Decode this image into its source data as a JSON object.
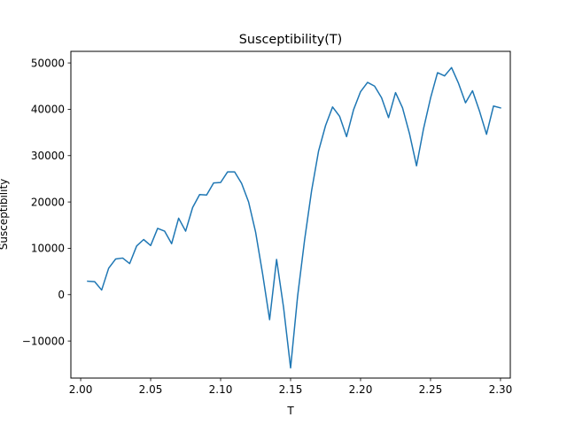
{
  "chart_data": {
    "type": "line",
    "title": "Susceptibility(T)",
    "xlabel": "T",
    "ylabel": "Susceptibility",
    "xlim": [
      1.993,
      2.307
    ],
    "ylim": [
      -18000,
      52500
    ],
    "xticks": [
      2.0,
      2.05,
      2.1,
      2.15,
      2.2,
      2.25,
      2.3
    ],
    "xtick_labels": [
      "2.00",
      "2.05",
      "2.10",
      "2.15",
      "2.20",
      "2.25",
      "2.30"
    ],
    "yticks": [
      -10000,
      0,
      10000,
      20000,
      30000,
      40000,
      50000
    ],
    "ytick_labels": [
      "−10000",
      "0",
      "10000",
      "20000",
      "30000",
      "40000",
      "50000"
    ],
    "grid": false,
    "line_color": "#1f77b4",
    "series": [
      {
        "x": [
          2.005,
          2.01,
          2.015,
          2.02,
          2.025,
          2.03,
          2.035,
          2.04,
          2.045,
          2.05,
          2.055,
          2.06,
          2.065,
          2.07,
          2.075,
          2.08,
          2.085,
          2.09,
          2.095,
          2.1,
          2.105,
          2.11,
          2.115,
          2.12,
          2.125,
          2.13,
          2.135,
          2.14,
          2.145,
          2.15,
          2.155,
          2.16,
          2.165,
          2.17,
          2.175,
          2.18,
          2.185,
          2.19,
          2.195,
          2.2,
          2.205,
          2.21,
          2.215,
          2.22,
          2.225,
          2.23,
          2.235,
          2.24,
          2.245,
          2.25,
          2.255,
          2.26,
          2.265,
          2.27,
          2.275,
          2.28,
          2.285,
          2.29,
          2.295,
          2.3
        ],
        "values": [
          2900,
          2800,
          1000,
          5700,
          7700,
          7900,
          6700,
          10500,
          11900,
          10600,
          14300,
          13700,
          11000,
          16500,
          13700,
          18800,
          21600,
          21500,
          24100,
          24200,
          26500,
          26500,
          24000,
          20000,
          13500,
          4500,
          -5400,
          7600,
          -2800,
          -15800,
          -400,
          11800,
          22400,
          31000,
          36500,
          40500,
          38500,
          34100,
          39900,
          43800,
          45800,
          45000,
          42500,
          38200,
          43600,
          40300,
          34700,
          27800,
          35800,
          42400,
          47900,
          47200,
          49000,
          45600,
          41400,
          44000,
          39600,
          34600,
          40700,
          40300
        ]
      }
    ]
  }
}
